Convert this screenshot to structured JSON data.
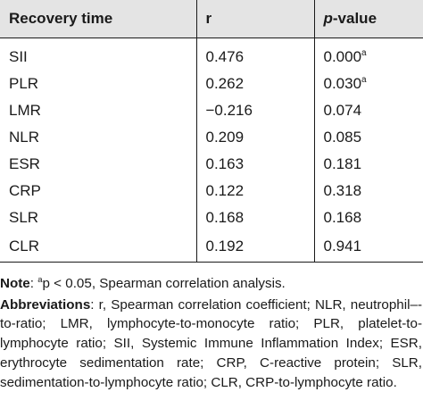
{
  "table": {
    "headers": {
      "col1": "Recovery time",
      "col2": "r",
      "col3_italic": "p",
      "col3_rest": "-value"
    },
    "rows": [
      {
        "label": "SII",
        "r": "0.476",
        "p": "0.000",
        "mark": "a"
      },
      {
        "label": "PLR",
        "r": "0.262",
        "p": "0.030",
        "mark": "a"
      },
      {
        "label": "LMR",
        "r": "−0.216",
        "p": "0.074",
        "mark": ""
      },
      {
        "label": "NLR",
        "r": "0.209",
        "p": "0.085",
        "mark": ""
      },
      {
        "label": "ESR",
        "r": "0.163",
        "p": "0.181",
        "mark": ""
      },
      {
        "label": "CRP",
        "r": "0.122",
        "p": "0.318",
        "mark": ""
      },
      {
        "label": "SLR",
        "r": "0.168",
        "p": "0.168",
        "mark": ""
      },
      {
        "label": "CLR",
        "r": "0.192",
        "p": "0.941",
        "mark": ""
      }
    ]
  },
  "notes": {
    "note_label": "Note",
    "note_sep": ": ",
    "note_sup": "a",
    "note_text": "p < 0.05, Spearman correlation analysis.",
    "abbr_label": "Abbreviations",
    "abbr_text": ": r, Spearman correlation coefficient; NLR, neu­trophil–-to-ratio; LMR, lymphocyte-to-monocyte ratio; PLR, pla­telet-to-lymphocyte ratio; SII, Systemic Immune Inflammation Index; ESR, erythrocyte sedimentation rate; CRP, C-reactive pro­tein; SLR, sedimentation-to-lymphocyte ratio; CLR, CRP-to-lym­phocyte ratio."
  }
}
